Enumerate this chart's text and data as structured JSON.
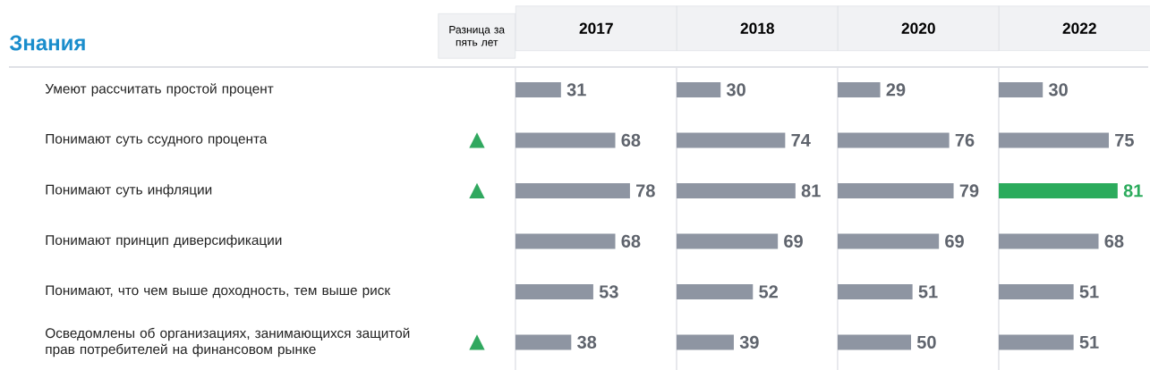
{
  "chart_data": [
    {
      "type": "bar",
      "orientation": "horizontal",
      "title": "2017",
      "tick_labels": "y",
      "data_labels": true,
      "categories": [
        "Умеют рассчитать простой процент",
        "Понимают суть ссудного процента",
        "Понимают суть инфляции",
        "Понимают принцип диверсификации",
        "Понимают, что чем выше доходность, тем выше риск",
        "Осведомлены об организациях, занимающихся защитой прав потребителей на финансовом рынке"
      ],
      "values": [
        31,
        68,
        78,
        68,
        53,
        38
      ],
      "colors": [
        "#8e95a2",
        "#8e95a2",
        "#8e95a2",
        "#8e95a2",
        "#8e95a2",
        "#8e95a2"
      ],
      "annotations": [
        "Знания",
        "Разница за пять лет",
        "▲",
        "▲",
        "▲"
      ]
    },
    {
      "type": "bar",
      "orientation": "horizontal",
      "title": "2018",
      "tick_labels": false,
      "data_labels": true,
      "categories": [
        null,
        null,
        null,
        null,
        null,
        null
      ],
      "values": [
        30,
        74,
        81,
        69,
        52,
        39
      ],
      "colors": [
        "#8e95a2",
        "#8e95a2",
        "#8e95a2",
        "#8e95a2",
        "#8e95a2",
        "#8e95a2"
      ]
    },
    {
      "type": "bar",
      "orientation": "horizontal",
      "title": "2020",
      "tick_labels": false,
      "data_labels": true,
      "categories": [
        null,
        null,
        null,
        null,
        null,
        null
      ],
      "values": [
        29,
        76,
        79,
        69,
        51,
        50
      ],
      "colors": [
        "#8e95a2",
        "#8e95a2",
        "#8e95a2",
        "#8e95a2",
        "#8e95a2",
        "#8e95a2"
      ]
    },
    {
      "type": "bar",
      "orientation": "horizontal",
      "title": "2022",
      "tick_labels": false,
      "data_labels": true,
      "categories": [
        null,
        null,
        null,
        null,
        null,
        null
      ],
      "values": [
        30,
        75,
        81,
        68,
        51,
        51
      ],
      "colors": [
        "#8e95a2",
        "#8e95a2",
        "#2bab5c",
        "#8e95a2",
        "#8e95a2",
        "#8e95a2"
      ]
    }
  ]
}
